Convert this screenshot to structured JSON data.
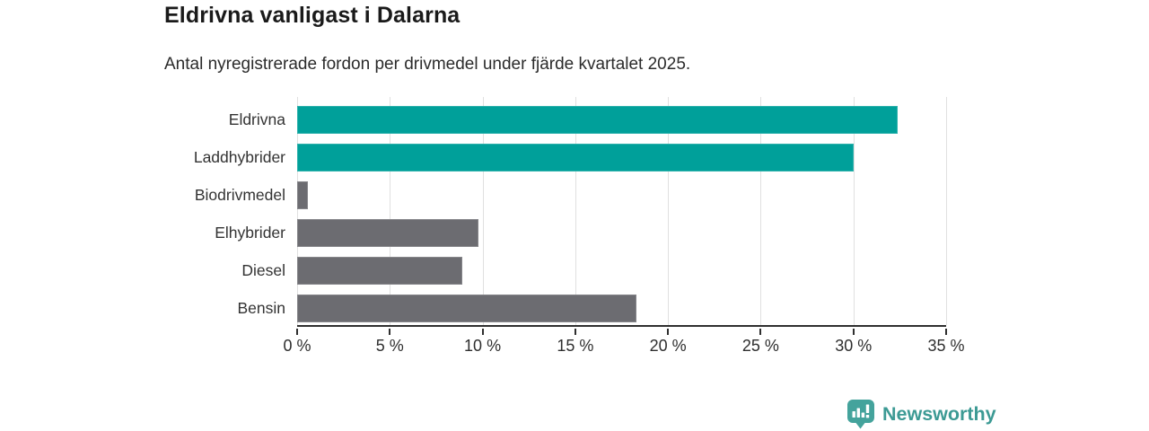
{
  "title": "Eldrivna vanligast i Dalarna",
  "subtitle": "Antal nyregistrerade fordon per drivmedel under fjärde kvartalet 2025.",
  "chart_data": {
    "type": "bar",
    "orientation": "horizontal",
    "title": "Eldrivna vanligast i Dalarna",
    "subtitle": "Antal nyregistrerade fordon per drivmedel under fjärde kvartalet 2025.",
    "categories": [
      "Eldrivna",
      "Laddhybrider",
      "Biodrivmedel",
      "Elhybrider",
      "Diesel",
      "Bensin"
    ],
    "values": [
      32.4,
      30.0,
      0.6,
      9.8,
      8.9,
      18.3
    ],
    "unit": "%",
    "bar_colors": [
      "#00a09a",
      "#00a09a",
      "#6c6c71",
      "#6c6c71",
      "#6c6c71",
      "#6c6c71"
    ],
    "xlabel": "",
    "ylabel": "",
    "xlim": [
      0,
      35
    ],
    "x_ticks": [
      0,
      5,
      10,
      15,
      20,
      25,
      30,
      35
    ],
    "x_tick_labels": [
      "0 %",
      "5 %",
      "10 %",
      "15 %",
      "20 %",
      "25 %",
      "30 %",
      "35 %"
    ],
    "grid": true,
    "legend": "none"
  },
  "colors": {
    "accent_teal": "#00a09a",
    "neutral_gray": "#6c6c71",
    "gridline": "#e0e0e0",
    "axis": "#2f2f2f",
    "text": "#1a1a1a",
    "logo_teal": "#3c9a94"
  },
  "branding": {
    "logo_text": "Newsworthy",
    "logo_icon": "bar-chart-speech-bubble-icon"
  }
}
